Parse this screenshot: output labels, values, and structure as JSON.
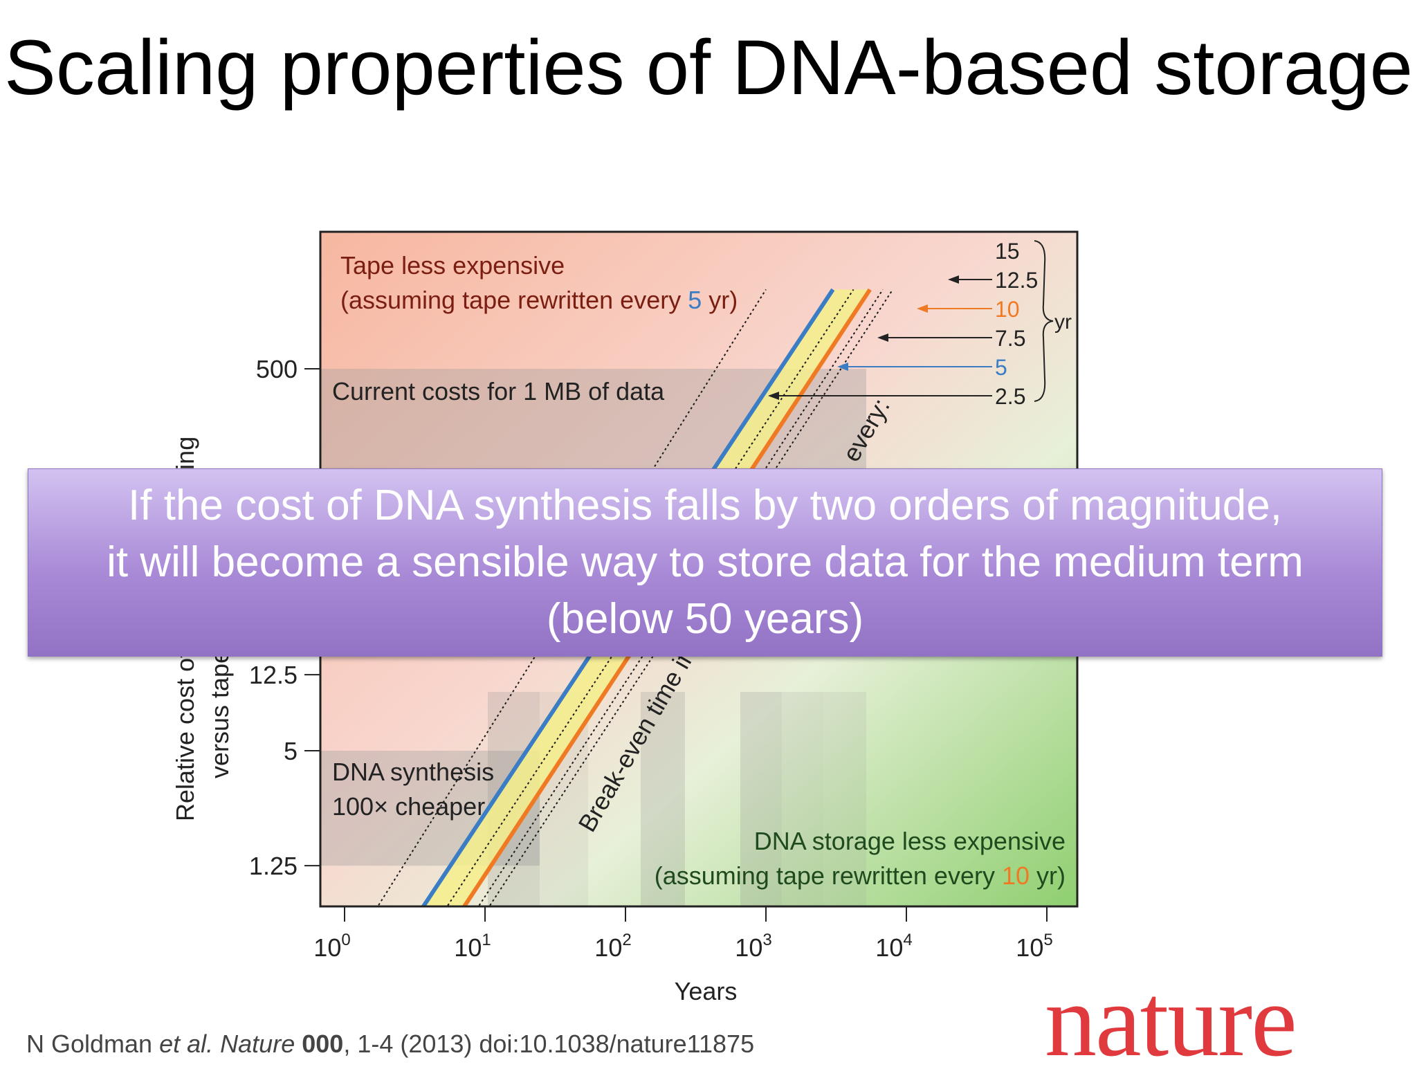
{
  "slide": {
    "title": "Scaling properties of DNA-based storage",
    "banner": {
      "lines": [
        "If the cost of DNA synthesis falls by two orders of magnitude,",
        "it will become a sensible way to store data for the medium term",
        "(below 50 years)"
      ]
    },
    "citation": {
      "author": "N Goldman",
      "etal": "et al.",
      "journal": "Nature",
      "volume": "000",
      "rest": ", 1-4 (2013) doi:10.1038/nature11875"
    },
    "logo_text": "nature"
  },
  "chart_data": {
    "type": "line",
    "xlabel": "Years",
    "ylabel_line1": "Relative cost of DNA-based writing",
    "ylabel_line2": "versus tape-based cost",
    "xscale": "log",
    "xlim": [
      1,
      100000
    ],
    "x_ticks": [
      1,
      10,
      100,
      1000,
      10000,
      100000
    ],
    "x_tick_exponents": [
      "0",
      "1",
      "2",
      "3",
      "4",
      "5"
    ],
    "x_tick_base": "10",
    "yscale": "log",
    "y_ticks": [
      {
        "value": 500,
        "label": "500"
      },
      {
        "value": 12.5,
        "label": "12.5"
      },
      {
        "value": 5,
        "label": "5"
      },
      {
        "value": 1.25,
        "label": "1.25"
      }
    ],
    "series": [
      {
        "name": "2.5",
        "color": "#1a1a1a",
        "style": "dotted",
        "x": [
          1.3,
          1000
        ],
        "y": [
          0.55,
          1300
        ]
      },
      {
        "name": "5",
        "color": "#3a7dc4",
        "style": "solid",
        "x": [
          2.7,
          3000
        ],
        "y": [
          0.55,
          1300
        ]
      },
      {
        "name": "7.5",
        "color": "#1a1a1a",
        "style": "dotted",
        "x": [
          4,
          4200
        ],
        "y": [
          0.55,
          1300
        ]
      },
      {
        "name": "10",
        "color": "#f07a23",
        "style": "solid",
        "x": [
          5.3,
          5500
        ],
        "y": [
          0.55,
          1300
        ]
      },
      {
        "name": "12.5",
        "color": "#1a1a1a",
        "style": "dotted",
        "x": [
          6.7,
          6800
        ],
        "y": [
          0.55,
          1300
        ]
      },
      {
        "name": "15",
        "color": "#1a1a1a",
        "style": "dotted",
        "x": [
          8,
          8000
        ],
        "y": [
          0.55,
          1300
        ]
      }
    ],
    "legend_unit": "yr",
    "bands": [
      {
        "label": "Current costs for 1 MB of data",
        "y_from": 125,
        "y_to": 500
      },
      {
        "label_lines": [
          "DNA synthesis",
          "100× cheaper"
        ],
        "y_from": 1.25,
        "y_to": 5
      }
    ],
    "annotations": {
      "tape_region": [
        "Tape less expensive",
        "(assuming tape rewritten every ",
        "5",
        " yr)"
      ],
      "dna_region": [
        "DNA storage less expensive",
        "(assuming tape rewritten every ",
        "10",
        " yr)"
      ],
      "diagonal_upper": "every:",
      "diagonal_lower": "Break-even time if"
    },
    "colors": {
      "tape_region": "#f8c7b4",
      "dna_region": "#a6d98a",
      "band_current": "#9a9a9a",
      "band_cheaper": "#9a9a9a",
      "accent_5": "#3a7dc4",
      "accent_10": "#f07a23",
      "yellow_band": "#f6ee8c",
      "tape_text": "#7a1e12",
      "dna_text": "#1e4a1e"
    }
  }
}
